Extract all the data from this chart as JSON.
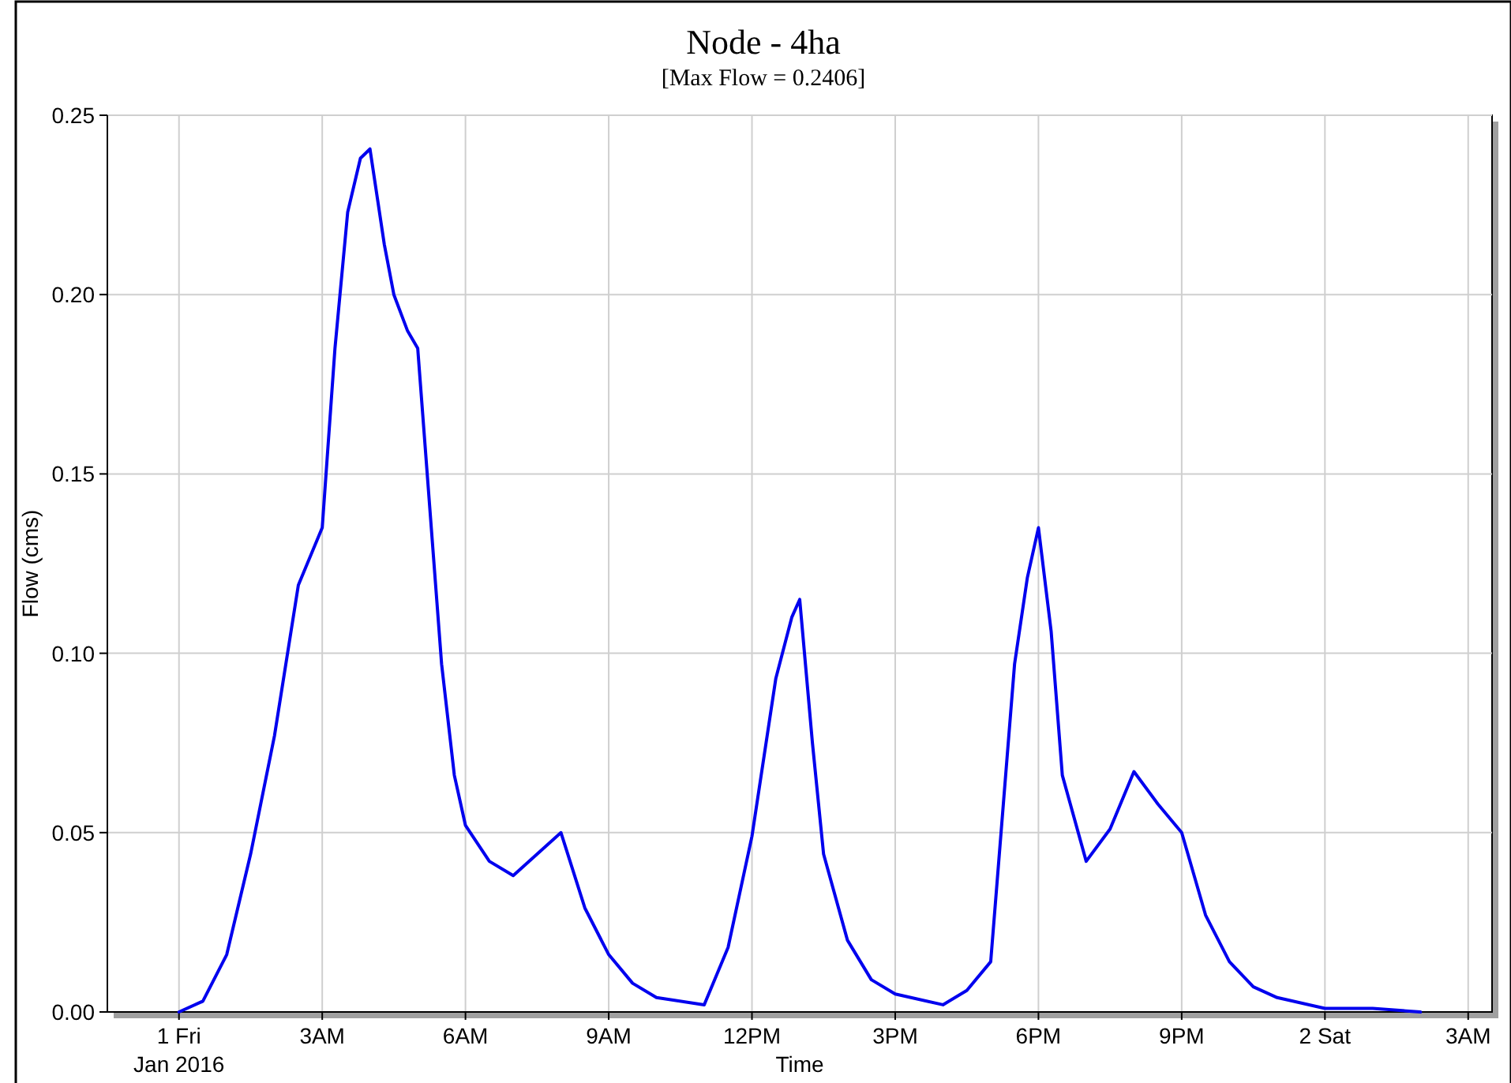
{
  "chart_data": {
    "type": "line",
    "title": "Node - 4ha",
    "subtitle": "[Max Flow = 0.2406]",
    "xlabel": "Time",
    "ylabel": "Flow (cms)",
    "annotations": [
      "Jan 2016"
    ],
    "xlim": [
      "2015-12-31T22:30",
      "2016-01-02T03:30"
    ],
    "xticks": [
      {
        "value": "2016-01-01T00:00",
        "label": "1 Fri"
      },
      {
        "value": "2016-01-01T03:00",
        "label": "3AM"
      },
      {
        "value": "2016-01-01T06:00",
        "label": "6AM"
      },
      {
        "value": "2016-01-01T09:00",
        "label": "9AM"
      },
      {
        "value": "2016-01-01T12:00",
        "label": "12PM"
      },
      {
        "value": "2016-01-01T15:00",
        "label": "3PM"
      },
      {
        "value": "2016-01-01T18:00",
        "label": "6PM"
      },
      {
        "value": "2016-01-01T21:00",
        "label": "9PM"
      },
      {
        "value": "2016-01-02T00:00",
        "label": "2 Sat"
      },
      {
        "value": "2016-01-02T03:00",
        "label": "3AM"
      }
    ],
    "ylim": [
      0,
      0.25
    ],
    "yticks": [
      {
        "value": 0,
        "label": "0.00"
      },
      {
        "value": 0.05,
        "label": "0.05"
      },
      {
        "value": 0.1,
        "label": "0.10"
      },
      {
        "value": 0.15,
        "label": "0.15"
      },
      {
        "value": 0.2,
        "label": "0.20"
      },
      {
        "value": 0.25,
        "label": "0.25"
      }
    ],
    "grid": true,
    "marker": "none",
    "line_style": "solid",
    "series": [
      {
        "color": "#0000ee",
        "x": [
          "2016-01-01T00:00",
          "2016-01-01T00:30",
          "2016-01-01T01:00",
          "2016-01-01T01:30",
          "2016-01-01T02:00",
          "2016-01-01T02:30",
          "2016-01-01T03:00",
          "2016-01-01T03:16",
          "2016-01-01T03:32",
          "2016-01-01T03:48",
          "2016-01-01T04:00",
          "2016-01-01T04:18",
          "2016-01-01T04:30",
          "2016-01-01T04:47",
          "2016-01-01T05:00",
          "2016-01-01T05:15",
          "2016-01-01T05:30",
          "2016-01-01T05:46",
          "2016-01-01T06:00",
          "2016-01-01T06:30",
          "2016-01-01T07:00",
          "2016-01-01T07:30",
          "2016-01-01T08:00",
          "2016-01-01T08:30",
          "2016-01-01T09:00",
          "2016-01-01T09:30",
          "2016-01-01T10:00",
          "2016-01-01T11:00",
          "2016-01-01T11:30",
          "2016-01-01T12:00",
          "2016-01-01T12:30",
          "2016-01-01T12:50",
          "2016-01-01T13:00",
          "2016-01-01T13:16",
          "2016-01-01T13:30",
          "2016-01-01T14:00",
          "2016-01-01T14:30",
          "2016-01-01T15:00",
          "2016-01-01T16:00",
          "2016-01-01T16:30",
          "2016-01-01T17:00",
          "2016-01-01T17:30",
          "2016-01-01T17:46",
          "2016-01-01T18:00",
          "2016-01-01T18:16",
          "2016-01-01T18:30",
          "2016-01-01T19:00",
          "2016-01-01T19:30",
          "2016-01-01T20:00",
          "2016-01-01T20:30",
          "2016-01-01T21:00",
          "2016-01-01T21:30",
          "2016-01-01T22:00",
          "2016-01-01T22:30",
          "2016-01-01T23:00",
          "2016-01-02T00:00",
          "2016-01-02T01:00",
          "2016-01-02T02:00"
        ],
        "values": [
          0,
          0.003,
          0.016,
          0.044,
          0.077,
          0.119,
          0.135,
          0.185,
          0.223,
          0.238,
          0.2406,
          0.214,
          0.2,
          0.19,
          0.185,
          0.141,
          0.097,
          0.066,
          0.052,
          0.042,
          0.038,
          0.044,
          0.05,
          0.029,
          0.016,
          0.008,
          0.004,
          0.002,
          0.018,
          0.049,
          0.093,
          0.11,
          0.115,
          0.075,
          0.044,
          0.02,
          0.009,
          0.005,
          0.002,
          0.006,
          0.014,
          0.097,
          0.121,
          0.135,
          0.106,
          0.066,
          0.042,
          0.051,
          0.067,
          0.058,
          0.05,
          0.027,
          0.014,
          0.007,
          0.004,
          0.001,
          0.001,
          0
        ]
      }
    ]
  }
}
